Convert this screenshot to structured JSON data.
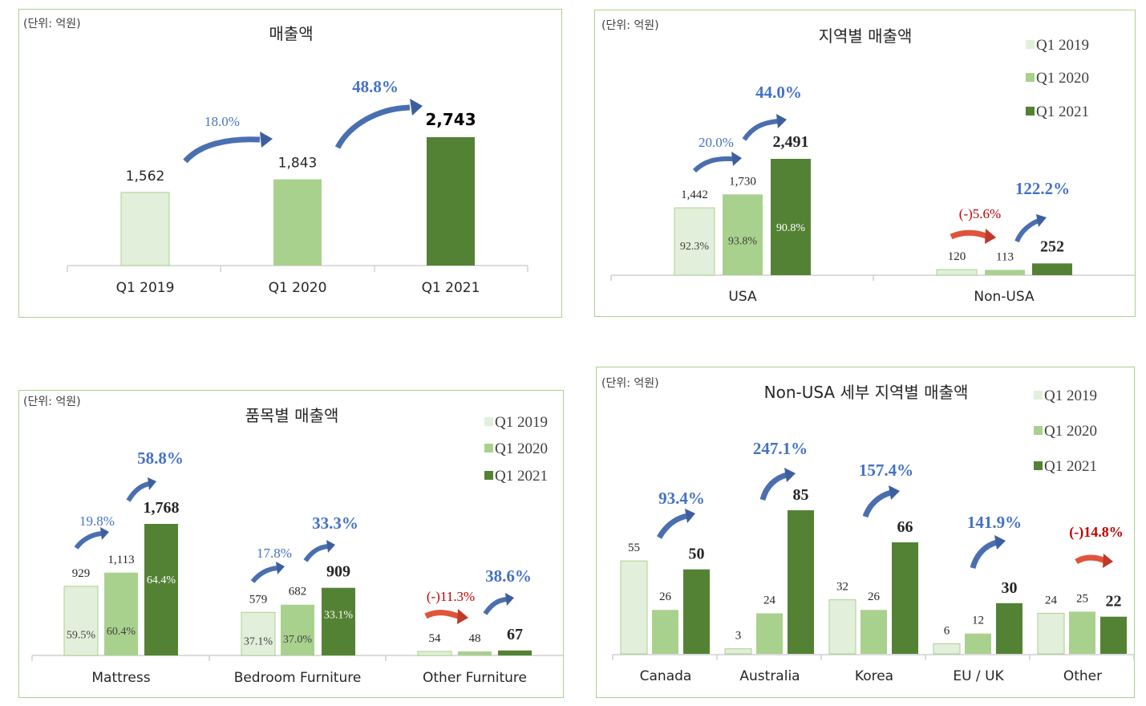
{
  "colors": {
    "q2019": "#e2efda",
    "q2020": "#a9d18e",
    "q2021": "#548235",
    "q2019_stroke": "#a9d18e",
    "growth_blue": "#4472c4",
    "growth_red": "#c00000"
  },
  "legend": [
    "Q1 2019",
    "Q1 2020",
    "Q1 2021"
  ],
  "chart_data": [
    {
      "id": "c1",
      "type": "bar",
      "unit": "(단위: 억원)",
      "title": "매출액",
      "categories": [
        "Q1 2019",
        "Q1 2020",
        "Q1 2021"
      ],
      "values": [
        1562,
        1843,
        2743
      ],
      "value_labels": [
        "1,562",
        "1,843",
        "2,743"
      ],
      "growth": [
        "18.0%",
        "48.8%"
      ],
      "ylim": [
        0,
        3300
      ]
    },
    {
      "id": "c2",
      "type": "bar",
      "unit": "(단위: 억원)",
      "title": "지역별 매출액",
      "categories": [
        "USA",
        "Non-USA"
      ],
      "series": [
        {
          "name": "Q1 2019",
          "values": [
            1442,
            120
          ],
          "labels": [
            "1,442",
            "120"
          ],
          "shares": [
            "92.3%",
            ""
          ]
        },
        {
          "name": "Q1 2020",
          "values": [
            1730,
            113
          ],
          "labels": [
            "1,730",
            "113"
          ],
          "shares": [
            "93.8%",
            ""
          ]
        },
        {
          "name": "Q1 2021",
          "values": [
            2491,
            252
          ],
          "labels": [
            "2,491",
            "252"
          ],
          "shares": [
            "90.8%",
            ""
          ]
        }
      ],
      "growth": [
        [
          "20.0%",
          "44.0%"
        ],
        [
          "(-)5.6%",
          "122.2%"
        ]
      ],
      "ylim": [
        0,
        3000
      ]
    },
    {
      "id": "c3",
      "type": "bar",
      "unit": "(단위: 억원)",
      "title": "품목별 매출액",
      "categories": [
        "Mattress",
        "Bedroom Furniture",
        "Other Furniture"
      ],
      "series": [
        {
          "name": "Q1 2019",
          "values": [
            929,
            579,
            54
          ],
          "labels": [
            "929",
            "579",
            "54"
          ],
          "shares": [
            "59.5%",
            "37.1%",
            ""
          ]
        },
        {
          "name": "Q1 2020",
          "values": [
            1113,
            682,
            48
          ],
          "labels": [
            "1,113",
            "682",
            "48"
          ],
          "shares": [
            "60.4%",
            "37.0%",
            ""
          ]
        },
        {
          "name": "Q1 2021",
          "values": [
            1768,
            909,
            67
          ],
          "labels": [
            "1,768",
            "909",
            "67"
          ],
          "shares": [
            "64.4%",
            "33.1%",
            ""
          ]
        }
      ],
      "growth": [
        [
          "19.8%",
          "58.8%"
        ],
        [
          "17.8%",
          "33.3%"
        ],
        [
          "(-)11.3%",
          "38.6%"
        ]
      ],
      "ylim": [
        0,
        2200
      ]
    },
    {
      "id": "c4",
      "type": "bar",
      "unit": "(단위: 억원)",
      "title": "Non-USA 세부 지역별 매출액",
      "categories": [
        "Canada",
        "Australia",
        "Korea",
        "EU / UK",
        "Other"
      ],
      "series": [
        {
          "name": "Q1 2019",
          "values": [
            55,
            3,
            32,
            6,
            24
          ],
          "labels": [
            "55",
            "3",
            "32",
            "6",
            "24"
          ]
        },
        {
          "name": "Q1 2020",
          "values": [
            26,
            24,
            26,
            12,
            25
          ],
          "labels": [
            "26",
            "24",
            "26",
            "12",
            "25"
          ]
        },
        {
          "name": "Q1 2021",
          "values": [
            50,
            85,
            66,
            30,
            22
          ],
          "labels": [
            "50",
            "85",
            "66",
            "30",
            "22"
          ]
        }
      ],
      "growth": [
        "93.4%",
        "247.1%",
        "157.4%",
        "141.9%",
        "(-)14.8%"
      ],
      "ylim": [
        0,
        100
      ]
    }
  ]
}
